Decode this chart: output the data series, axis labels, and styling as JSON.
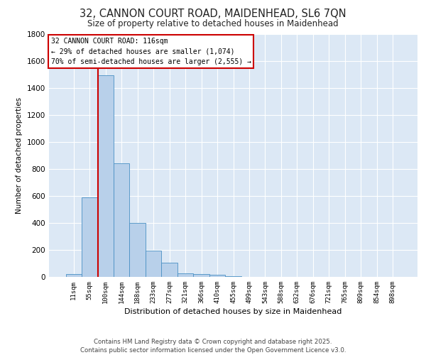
{
  "title_line1": "32, CANNON COURT ROAD, MAIDENHEAD, SL6 7QN",
  "title_line2": "Size of property relative to detached houses in Maidenhead",
  "xlabel": "Distribution of detached houses by size in Maidenhead",
  "ylabel": "Number of detached properties",
  "annotation_line1": "32 CANNON COURT ROAD: 116sqm",
  "annotation_line2": "← 29% of detached houses are smaller (1,074)",
  "annotation_line3": "70% of semi-detached houses are larger (2,555) →",
  "categories": [
    "11sqm",
    "55sqm",
    "100sqm",
    "144sqm",
    "188sqm",
    "233sqm",
    "277sqm",
    "321sqm",
    "366sqm",
    "410sqm",
    "455sqm",
    "499sqm",
    "543sqm",
    "588sqm",
    "632sqm",
    "676sqm",
    "721sqm",
    "765sqm",
    "809sqm",
    "854sqm",
    "898sqm"
  ],
  "bar_values": [
    20,
    590,
    1490,
    840,
    400,
    195,
    105,
    25,
    20,
    15,
    5,
    2,
    2,
    2,
    1,
    1,
    1,
    1,
    1,
    1,
    1
  ],
  "bar_color": "#b8d0ea",
  "bar_edge_color": "#4a90c4",
  "vline_color": "#cc0000",
  "vline_x_index": 2,
  "ylim": [
    0,
    1800
  ],
  "yticks": [
    0,
    200,
    400,
    600,
    800,
    1000,
    1200,
    1400,
    1600,
    1800
  ],
  "background_color": "#dce8f5",
  "grid_color": "#ffffff",
  "fig_background": "#ffffff",
  "annotation_box_color": "#ffffff",
  "annotation_border_color": "#cc0000",
  "footer_line1": "Contains HM Land Registry data © Crown copyright and database right 2025.",
  "footer_line2": "Contains public sector information licensed under the Open Government Licence v3.0."
}
